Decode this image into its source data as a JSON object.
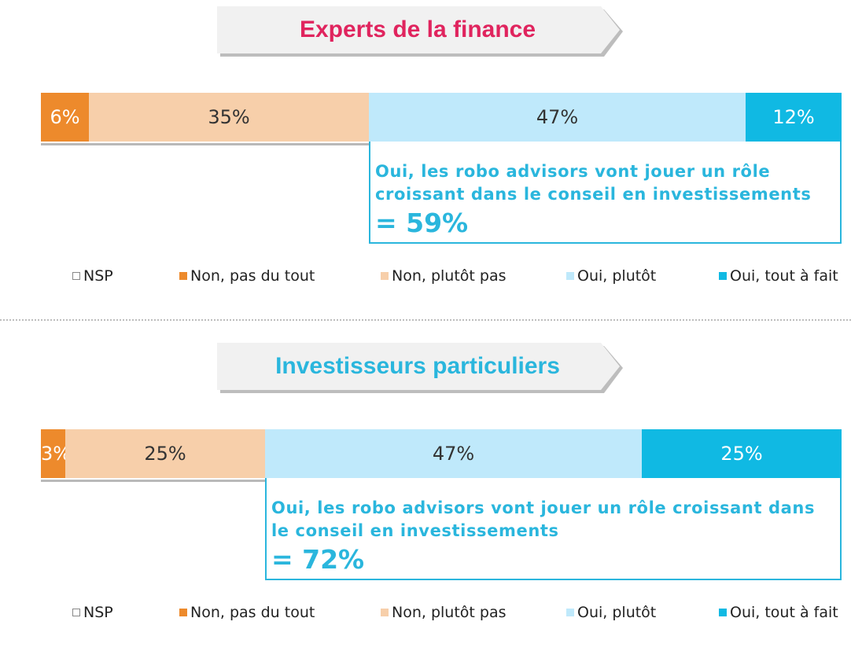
{
  "chart_data": [
    {
      "type": "bar",
      "stacked": true,
      "orientation": "horizontal",
      "title": "Experts de la finance",
      "series": [
        {
          "name": "NSP",
          "values": [
            0
          ],
          "color": "#ffffff"
        },
        {
          "name": "Non, pas du tout",
          "values": [
            6
          ],
          "color": "#ed8a2c"
        },
        {
          "name": "Non, plutôt pas",
          "values": [
            35
          ],
          "color": "#f7cfaa"
        },
        {
          "name": "Oui, plutôt",
          "values": [
            47
          ],
          "color": "#bfe9fb"
        },
        {
          "name": "Oui, tout à fait",
          "values": [
            12
          ],
          "color": "#10b9e3"
        }
      ],
      "data_labels": [
        "",
        "6%",
        "35%",
        "47%",
        "12%"
      ],
      "annotation": {
        "text": "Oui, les robo advisors vont jouer un rôle croissant dans le conseil en investissements",
        "total": "= 59%",
        "spans_series": [
          "Oui, plutôt",
          "Oui, tout à fait"
        ]
      },
      "legend_placement": "bottom"
    },
    {
      "type": "bar",
      "stacked": true,
      "orientation": "horizontal",
      "title": "Investisseurs particuliers",
      "series": [
        {
          "name": "NSP",
          "values": [
            0
          ],
          "color": "#ffffff"
        },
        {
          "name": "Non, pas du tout",
          "values": [
            3
          ],
          "color": "#ed8a2c"
        },
        {
          "name": "Non, plutôt pas",
          "values": [
            25
          ],
          "color": "#f7cfaa"
        },
        {
          "name": "Oui, plutôt",
          "values": [
            47
          ],
          "color": "#bfe9fb"
        },
        {
          "name": "Oui, tout à fait",
          "values": [
            25
          ],
          "color": "#10b9e3"
        }
      ],
      "data_labels": [
        "",
        "3%",
        "25%",
        "47%",
        "25%"
      ],
      "annotation": {
        "text": "Oui, les robo advisors vont jouer un rôle croissant dans le conseil en investissements",
        "total": "= 72%",
        "spans_series": [
          "Oui, plutôt",
          "Oui, tout à fait"
        ]
      },
      "legend_placement": "bottom"
    }
  ],
  "colors": {
    "title_experts": "#e0245e",
    "title_investisseurs": "#2ab6dd",
    "callout": "#2ab6dd",
    "label_dark": "#333333",
    "label_light": "#ffffff"
  }
}
